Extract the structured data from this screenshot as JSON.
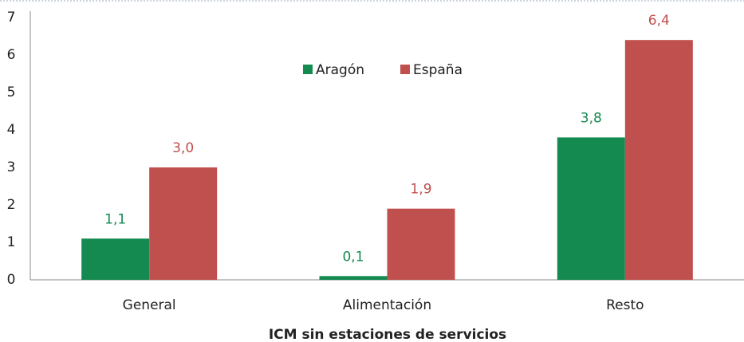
{
  "chart_data": {
    "type": "bar",
    "x_label": "ICM sin estaciones de servicios",
    "categories": [
      "General",
      "Alimentación",
      "Resto"
    ],
    "series": [
      {
        "name": "Aragón",
        "color": "#148a50",
        "values": [
          1.1,
          0.1,
          3.8
        ],
        "value_labels": [
          "1,1",
          "0,1",
          "3,8"
        ]
      },
      {
        "name": "España",
        "color": "#c0504d",
        "values": [
          3.0,
          1.9,
          6.4
        ],
        "value_labels": [
          "3,0",
          "1,9",
          "6,4"
        ]
      }
    ],
    "ylim": [
      0,
      7
    ],
    "yticks": [
      0,
      1,
      2,
      3,
      4,
      5,
      6,
      7
    ],
    "grid": false,
    "legend": "top"
  }
}
